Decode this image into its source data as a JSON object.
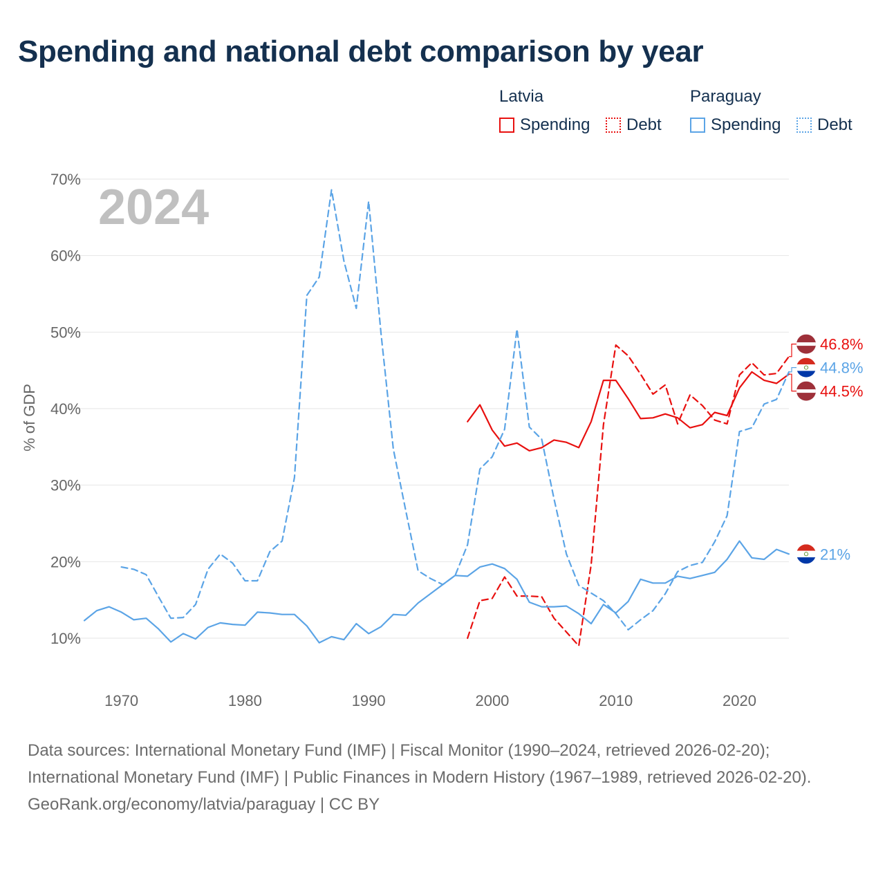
{
  "title": "Spending and national debt comparison by year",
  "legend": {
    "latvia": {
      "name": "Latvia",
      "spending": "Spending",
      "debt": "Debt"
    },
    "paraguay": {
      "name": "Paraguay",
      "spending": "Spending",
      "debt": "Debt"
    }
  },
  "colors": {
    "latvia": "#e8100f",
    "paraguay": "#5ba4e6",
    "grid": "#e6e6e6",
    "title": "#14304f"
  },
  "footer": {
    "sources": "Data sources: International Monetary Fund (IMF) | Fiscal Monitor (1990–2024, retrieved 2026-02-20); International Monetary Fund (IMF) | Public Finances in Modern History (1967–1989, retrieved 2026-02-20).",
    "credit": "GeoRank.org/economy/latvia/paraguay | CC BY"
  },
  "chart_data": {
    "type": "line",
    "title": "Spending and national debt comparison by year",
    "year_label": "2024",
    "ylabel": "% of GDP",
    "xlabel": "",
    "xlim": [
      1967,
      2024
    ],
    "ylim": [
      5,
      72
    ],
    "yticks": [
      10,
      20,
      30,
      40,
      50,
      60,
      70
    ],
    "ytick_labels": [
      "10%",
      "20%",
      "30%",
      "40%",
      "50%",
      "60%",
      "70%"
    ],
    "xticks": [
      1970,
      1980,
      1990,
      2000,
      2010,
      2020
    ],
    "xtick_labels": [
      "1970",
      "1980",
      "1990",
      "2000",
      "2010",
      "2020"
    ],
    "grid": true,
    "series": [
      {
        "name": "Latvia Spending",
        "country": "latvia",
        "style": "solid",
        "start": 1998,
        "values": [
          38.3,
          40.5,
          37.2,
          35.1,
          35.5,
          34.5,
          34.9,
          35.9,
          35.6,
          34.9,
          38.3,
          43.7,
          43.7,
          41.3,
          38.7,
          38.8,
          39.3,
          38.8,
          37.5,
          37.9,
          39.5,
          39.1,
          42.7,
          44.8,
          43.7,
          43.3,
          44.5
        ],
        "end_label": "44.5%"
      },
      {
        "name": "Latvia Debt",
        "country": "latvia",
        "style": "dashed",
        "start": 1998,
        "values": [
          10.0,
          14.9,
          15.2,
          18.0,
          15.5,
          15.5,
          15.4,
          12.6,
          10.8,
          9.0,
          19.6,
          37.9,
          48.3,
          46.9,
          44.5,
          41.9,
          43.1,
          38.0,
          41.8,
          40.4,
          38.5,
          38.0,
          44.4,
          46.0,
          44.4,
          44.6,
          46.8
        ],
        "end_label": "46.8%"
      },
      {
        "name": "Paraguay Spending",
        "country": "paraguay",
        "style": "solid",
        "start": 1967,
        "values": [
          12.3,
          13.6,
          14.1,
          13.4,
          12.4,
          12.6,
          11.2,
          9.5,
          10.6,
          9.9,
          11.4,
          12.0,
          11.8,
          11.7,
          13.4,
          13.3,
          13.1,
          13.1,
          11.6,
          9.4,
          10.2,
          9.8,
          11.9,
          10.6,
          11.5,
          13.1,
          13.0,
          14.6,
          15.8,
          17.0,
          18.2,
          18.1,
          19.3,
          19.7,
          19.1,
          17.7,
          14.7,
          14.1,
          14.1,
          14.2,
          13.2,
          11.9,
          14.4,
          13.3,
          14.8,
          17.7,
          17.2,
          17.2,
          18.1,
          17.8,
          18.2,
          18.6,
          20.3,
          22.7,
          20.5,
          20.3,
          21.6,
          21.0
        ],
        "end_label": "21%"
      },
      {
        "name": "Paraguay Debt",
        "country": "paraguay",
        "style": "dashed",
        "start": 1970,
        "values": [
          19.3,
          19.0,
          18.3,
          15.4,
          12.6,
          12.7,
          14.4,
          19.0,
          21.0,
          19.8,
          17.5,
          17.5,
          21.3,
          22.7,
          31.0,
          54.8,
          57.2,
          68.6,
          59.3,
          53.1,
          67.1,
          49.8,
          34.7,
          26.7,
          18.8,
          17.8,
          17.0,
          18.2,
          22.2,
          32.1,
          33.7,
          37.3,
          50.4,
          37.6,
          36.0,
          28.2,
          21.0,
          16.9,
          15.9,
          14.9,
          13.2,
          11.1,
          12.4,
          13.6,
          15.8,
          18.7,
          19.5,
          19.9,
          22.6,
          26.0,
          37.0,
          37.5,
          40.6,
          41.2,
          44.8
        ],
        "end_label": "44.8%"
      }
    ]
  }
}
